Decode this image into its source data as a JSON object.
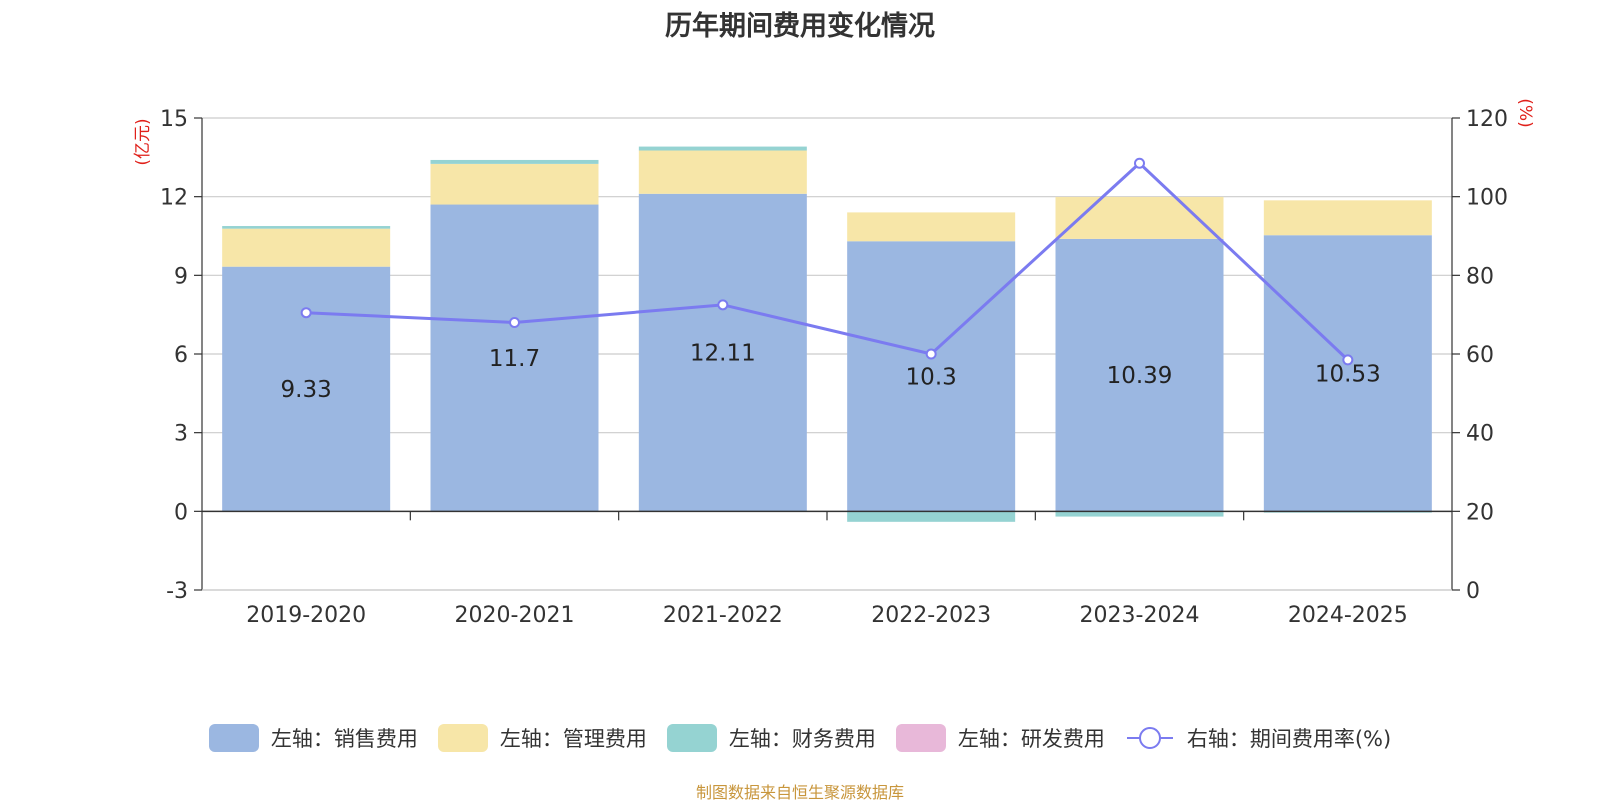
{
  "title": "历年期间费用变化情况",
  "source_note": "制图数据来自恒生聚源数据库",
  "colors": {
    "sales": "#9bb7e1",
    "admin": "#f7e6a8",
    "finance": "#95d3d2",
    "rd": "#e8b8d9",
    "rate_line": "#7b7bf0",
    "axis_unit": "#e0201a"
  },
  "chart_data": {
    "type": "bar",
    "stacked": true,
    "categories": [
      "2019-2020",
      "2020-2021",
      "2021-2022",
      "2022-2023",
      "2023-2024",
      "2024-2025"
    ],
    "left_axis": {
      "unit_label": "(亿元)",
      "ylim": [
        -3,
        15
      ],
      "ticks": [
        -3,
        0,
        3,
        6,
        9,
        12,
        15
      ]
    },
    "right_axis": {
      "unit_label": "(%)",
      "ylim": [
        0,
        120
      ],
      "ticks": [
        0,
        20,
        40,
        60,
        80,
        100,
        120
      ]
    },
    "grid": true,
    "legend_position": "bottom",
    "series": [
      {
        "name": "左轴：销售费用",
        "key": "sales",
        "axis": "left",
        "kind": "bar",
        "values": [
          9.33,
          11.7,
          12.11,
          10.3,
          10.39,
          10.53
        ]
      },
      {
        "name": "左轴：管理费用",
        "key": "admin",
        "axis": "left",
        "kind": "bar",
        "values": [
          1.45,
          1.55,
          1.65,
          1.1,
          1.6,
          1.33
        ]
      },
      {
        "name": "左轴：财务费用",
        "key": "finance",
        "axis": "left",
        "kind": "bar",
        "values": [
          0.1,
          0.15,
          0.15,
          -0.4,
          -0.2,
          -0.05
        ]
      },
      {
        "name": "左轴：研发费用",
        "key": "rd",
        "axis": "left",
        "kind": "bar",
        "values": [
          0,
          0,
          0,
          0,
          0,
          0
        ]
      },
      {
        "name": "右轴：期间费用率(%)",
        "key": "rate_line",
        "axis": "right",
        "kind": "line",
        "values": [
          70.5,
          68.0,
          72.5,
          60.0,
          108.5,
          58.5
        ]
      }
    ],
    "data_labels": {
      "series": "左轴：销售费用",
      "labels": [
        "9.33",
        "11.7",
        "12.11",
        "10.3",
        "10.39",
        "10.53"
      ]
    }
  }
}
